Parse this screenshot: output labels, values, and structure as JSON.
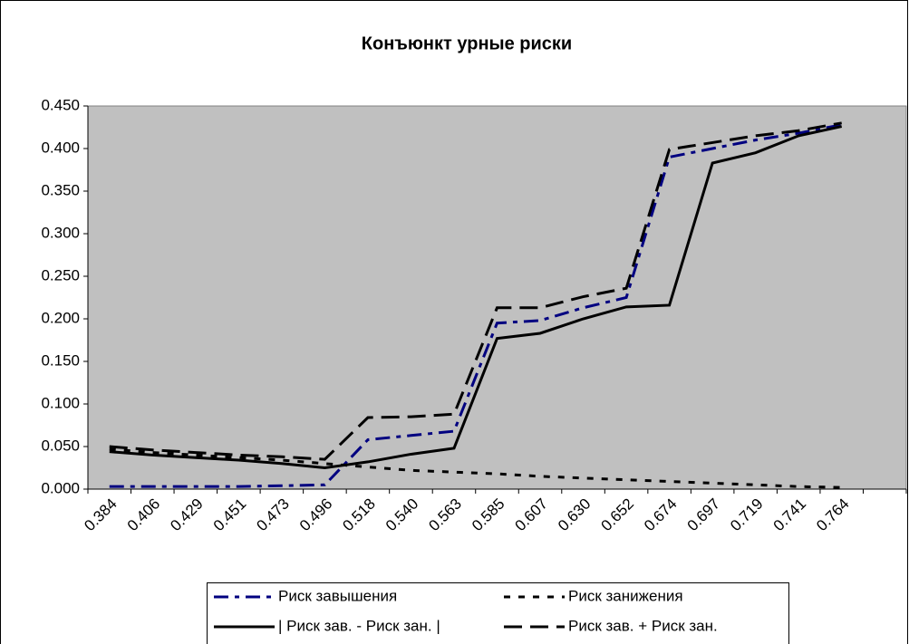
{
  "chart_data": {
    "type": "line",
    "title": "Конъюнкт урные риски",
    "categories": [
      "0.384",
      "0.406",
      "0.429",
      "0.451",
      "0.473",
      "0.496",
      "0.518",
      "0.540",
      "0.563",
      "0.585",
      "0.607",
      "0.630",
      "0.652",
      "0.674",
      "0.697",
      "0.719",
      "0.741",
      "0.764",
      null
    ],
    "series": [
      {
        "name": "Риск завышения",
        "color": "#000080",
        "dash": "16 7 5 7",
        "values": [
          0.003,
          0.003,
          0.003,
          0.003,
          0.004,
          0.005,
          0.058,
          0.063,
          0.068,
          0.195,
          0.198,
          0.213,
          0.225,
          0.39,
          0.4,
          0.41,
          0.418,
          0.428,
          null
        ]
      },
      {
        "name": "Риск занижения",
        "color": "#000000",
        "dash": "7 9",
        "values": [
          0.047,
          0.043,
          0.04,
          0.037,
          0.034,
          0.03,
          0.026,
          0.022,
          0.02,
          0.018,
          0.015,
          0.013,
          0.011,
          0.009,
          0.007,
          0.005,
          0.003,
          0.002,
          null
        ]
      },
      {
        "name": "| Риск зав. - Риск зан. |",
        "color": "#000000",
        "dash": "none",
        "values": [
          0.044,
          0.04,
          0.037,
          0.034,
          0.03,
          0.025,
          0.032,
          0.041,
          0.048,
          0.177,
          0.183,
          0.2,
          0.214,
          0.216,
          0.383,
          0.395,
          0.415,
          0.426,
          null
        ]
      },
      {
        "name": "Риск зав. + Риск зан.",
        "color": "#000000",
        "dash": "20 9",
        "values": [
          0.05,
          0.046,
          0.043,
          0.04,
          0.038,
          0.035,
          0.084,
          0.085,
          0.088,
          0.213,
          0.213,
          0.226,
          0.236,
          0.399,
          0.407,
          0.415,
          0.421,
          0.43,
          null
        ]
      }
    ],
    "ylim": [
      0,
      0.45
    ],
    "yticks": [
      {
        "value": 0,
        "label": "0.000"
      },
      {
        "value": 0.05,
        "label": "0.050"
      },
      {
        "value": 0.1,
        "label": "0.100"
      },
      {
        "value": 0.15,
        "label": "0.150"
      },
      {
        "value": 0.2,
        "label": "0.200"
      },
      {
        "value": 0.25,
        "label": "0.250"
      },
      {
        "value": 0.3,
        "label": "0.300"
      },
      {
        "value": 0.35,
        "label": "0.350"
      },
      {
        "value": 0.4,
        "label": "0.400"
      },
      {
        "value": 0.45,
        "label": "0.450"
      }
    ],
    "plot_color": "#c0c0c0"
  }
}
